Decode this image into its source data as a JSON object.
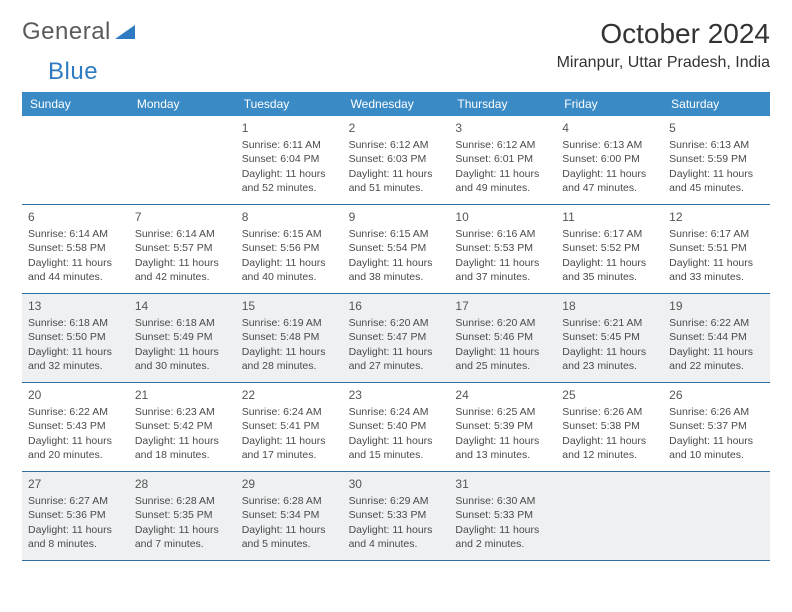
{
  "brand": {
    "name_a": "General",
    "name_b": "Blue",
    "tri_color": "#2f7bc2"
  },
  "title": "October 2024",
  "location": "Miranpur, Uttar Pradesh, India",
  "colors": {
    "header_bg": "#3a8ac6",
    "header_text": "#ffffff",
    "rule": "#2f6fa0",
    "shade": "#eef1f2",
    "body_text": "#4a4a4a"
  },
  "daysOfWeek": [
    "Sunday",
    "Monday",
    "Tuesday",
    "Wednesday",
    "Thursday",
    "Friday",
    "Saturday"
  ],
  "weeks": [
    [
      null,
      null,
      {
        "n": "1",
        "sr": "6:11 AM",
        "ss": "6:04 PM",
        "dl": "11 hours and 52 minutes."
      },
      {
        "n": "2",
        "sr": "6:12 AM",
        "ss": "6:03 PM",
        "dl": "11 hours and 51 minutes."
      },
      {
        "n": "3",
        "sr": "6:12 AM",
        "ss": "6:01 PM",
        "dl": "11 hours and 49 minutes."
      },
      {
        "n": "4",
        "sr": "6:13 AM",
        "ss": "6:00 PM",
        "dl": "11 hours and 47 minutes."
      },
      {
        "n": "5",
        "sr": "6:13 AM",
        "ss": "5:59 PM",
        "dl": "11 hours and 45 minutes."
      }
    ],
    [
      {
        "n": "6",
        "sr": "6:14 AM",
        "ss": "5:58 PM",
        "dl": "11 hours and 44 minutes."
      },
      {
        "n": "7",
        "sr": "6:14 AM",
        "ss": "5:57 PM",
        "dl": "11 hours and 42 minutes."
      },
      {
        "n": "8",
        "sr": "6:15 AM",
        "ss": "5:56 PM",
        "dl": "11 hours and 40 minutes."
      },
      {
        "n": "9",
        "sr": "6:15 AM",
        "ss": "5:54 PM",
        "dl": "11 hours and 38 minutes."
      },
      {
        "n": "10",
        "sr": "6:16 AM",
        "ss": "5:53 PM",
        "dl": "11 hours and 37 minutes."
      },
      {
        "n": "11",
        "sr": "6:17 AM",
        "ss": "5:52 PM",
        "dl": "11 hours and 35 minutes."
      },
      {
        "n": "12",
        "sr": "6:17 AM",
        "ss": "5:51 PM",
        "dl": "11 hours and 33 minutes."
      }
    ],
    [
      {
        "n": "13",
        "sr": "6:18 AM",
        "ss": "5:50 PM",
        "dl": "11 hours and 32 minutes."
      },
      {
        "n": "14",
        "sr": "6:18 AM",
        "ss": "5:49 PM",
        "dl": "11 hours and 30 minutes."
      },
      {
        "n": "15",
        "sr": "6:19 AM",
        "ss": "5:48 PM",
        "dl": "11 hours and 28 minutes."
      },
      {
        "n": "16",
        "sr": "6:20 AM",
        "ss": "5:47 PM",
        "dl": "11 hours and 27 minutes."
      },
      {
        "n": "17",
        "sr": "6:20 AM",
        "ss": "5:46 PM",
        "dl": "11 hours and 25 minutes."
      },
      {
        "n": "18",
        "sr": "6:21 AM",
        "ss": "5:45 PM",
        "dl": "11 hours and 23 minutes."
      },
      {
        "n": "19",
        "sr": "6:22 AM",
        "ss": "5:44 PM",
        "dl": "11 hours and 22 minutes."
      }
    ],
    [
      {
        "n": "20",
        "sr": "6:22 AM",
        "ss": "5:43 PM",
        "dl": "11 hours and 20 minutes."
      },
      {
        "n": "21",
        "sr": "6:23 AM",
        "ss": "5:42 PM",
        "dl": "11 hours and 18 minutes."
      },
      {
        "n": "22",
        "sr": "6:24 AM",
        "ss": "5:41 PM",
        "dl": "11 hours and 17 minutes."
      },
      {
        "n": "23",
        "sr": "6:24 AM",
        "ss": "5:40 PM",
        "dl": "11 hours and 15 minutes."
      },
      {
        "n": "24",
        "sr": "6:25 AM",
        "ss": "5:39 PM",
        "dl": "11 hours and 13 minutes."
      },
      {
        "n": "25",
        "sr": "6:26 AM",
        "ss": "5:38 PM",
        "dl": "11 hours and 12 minutes."
      },
      {
        "n": "26",
        "sr": "6:26 AM",
        "ss": "5:37 PM",
        "dl": "11 hours and 10 minutes."
      }
    ],
    [
      {
        "n": "27",
        "sr": "6:27 AM",
        "ss": "5:36 PM",
        "dl": "11 hours and 8 minutes."
      },
      {
        "n": "28",
        "sr": "6:28 AM",
        "ss": "5:35 PM",
        "dl": "11 hours and 7 minutes."
      },
      {
        "n": "29",
        "sr": "6:28 AM",
        "ss": "5:34 PM",
        "dl": "11 hours and 5 minutes."
      },
      {
        "n": "30",
        "sr": "6:29 AM",
        "ss": "5:33 PM",
        "dl": "11 hours and 4 minutes."
      },
      {
        "n": "31",
        "sr": "6:30 AM",
        "ss": "5:33 PM",
        "dl": "11 hours and 2 minutes."
      },
      null,
      null
    ]
  ],
  "labels": {
    "sunrise": "Sunrise:",
    "sunset": "Sunset:",
    "daylight": "Daylight:"
  }
}
